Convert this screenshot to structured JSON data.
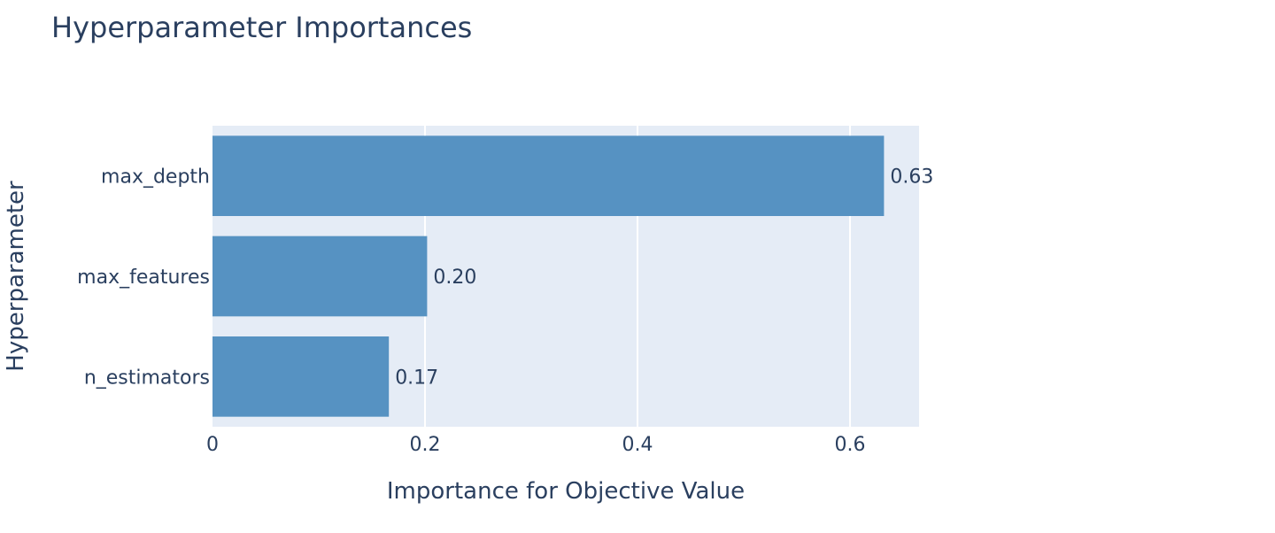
{
  "chart_data": {
    "type": "bar",
    "orientation": "horizontal",
    "title": "Hyperparameter Importances",
    "xlabel": "Importance for Objective Value",
    "ylabel": "Hyperparameter",
    "categories": [
      "max_depth",
      "max_features",
      "n_estimators"
    ],
    "values": [
      0.632,
      0.202,
      0.166
    ],
    "data_labels": [
      "0.63",
      "0.20",
      "0.17"
    ],
    "xlim": [
      0,
      0.665
    ],
    "xticks": [
      0,
      0.2,
      0.4,
      0.6
    ],
    "xtick_labels": [
      "0",
      "0.2",
      "0.4",
      "0.6"
    ],
    "grid": true,
    "legend": "none"
  },
  "colors": {
    "bar": "#5692c2",
    "plot_background": "#e5ecf6",
    "grid": "#ffffff",
    "text": "#2a3f5f"
  }
}
